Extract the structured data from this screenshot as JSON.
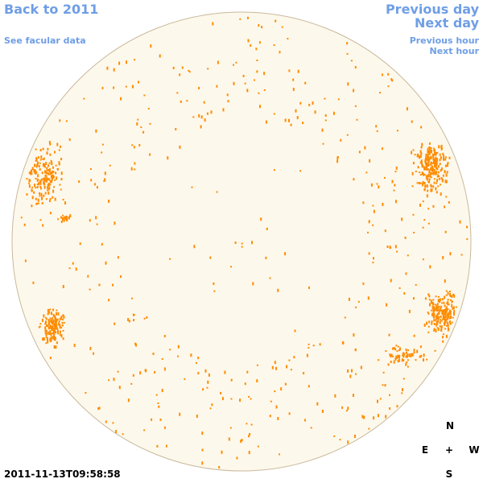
{
  "links": {
    "back": "Back to 2011",
    "facular": "See facular data",
    "prev_day": "Previous day",
    "next_day": "Next day",
    "prev_hour": "Previous hour",
    "next_hour": "Next hour"
  },
  "timestamp": "2011-11-13T09:58:58",
  "compass": {
    "north": "N",
    "east": "E",
    "center": "+",
    "west": "W",
    "south": "S"
  }
}
